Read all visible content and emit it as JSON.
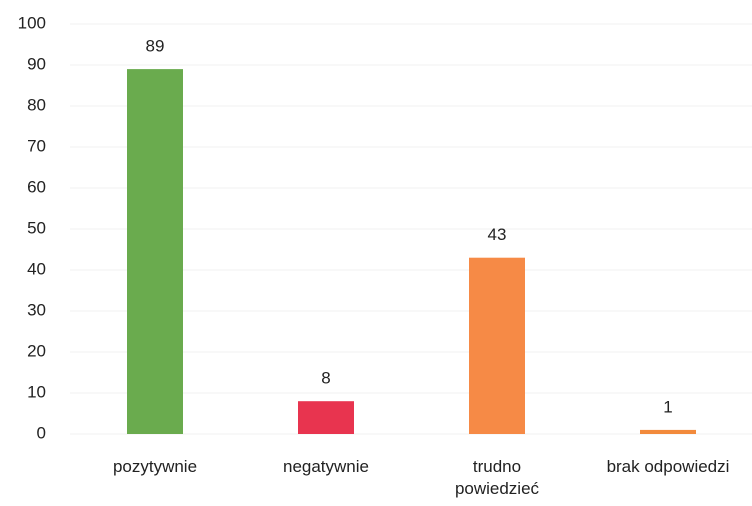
{
  "chart_data": {
    "type": "bar",
    "categories": [
      "pozytywnie",
      "negatywnie",
      "trudno powiedzieć",
      "brak odpowiedzi"
    ],
    "values": [
      89,
      8,
      43,
      1
    ],
    "colors": [
      "#6aab4e",
      "#e8344f",
      "#f68a46",
      "#f28a3c"
    ],
    "ylim": [
      0,
      100
    ],
    "yticks": [
      0,
      10,
      20,
      30,
      40,
      50,
      60,
      70,
      80,
      90,
      100
    ],
    "grid": true
  }
}
